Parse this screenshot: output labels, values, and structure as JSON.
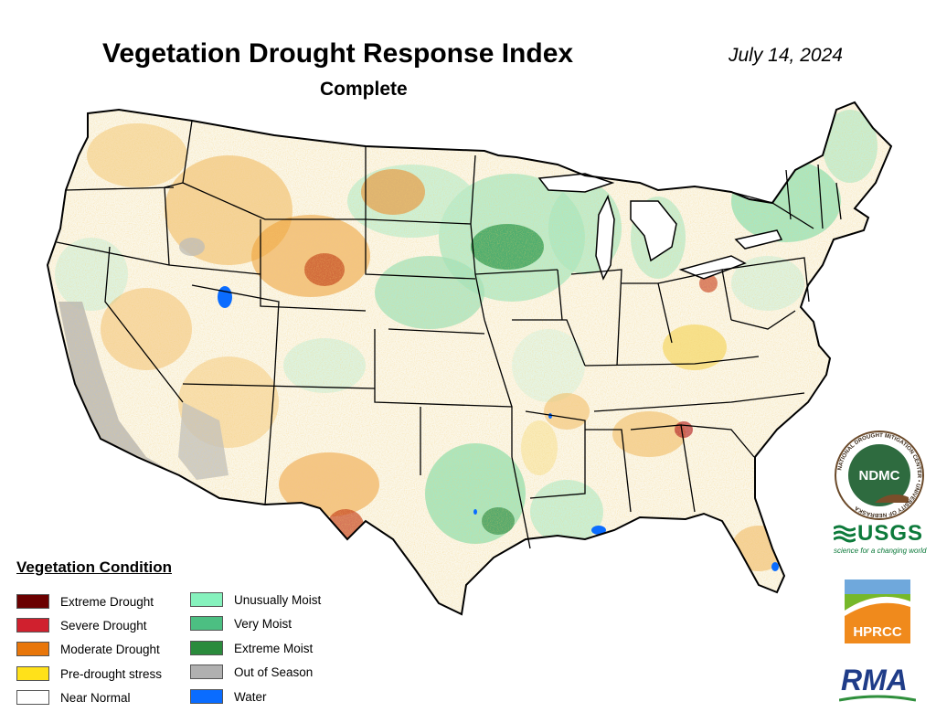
{
  "header": {
    "title": "Vegetation Drought Response Index",
    "subtitle": "Complete",
    "date": "July 14, 2024"
  },
  "legend": {
    "title": "Vegetation Condition",
    "items": [
      {
        "label": "Extreme Drought",
        "color": "#6b0000"
      },
      {
        "label": "Severe Drought",
        "color": "#d0202e"
      },
      {
        "label": "Moderate Drought",
        "color": "#e8760a"
      },
      {
        "label": "Pre-drought stress",
        "color": "#ffe11a"
      },
      {
        "label": "Near Normal",
        "color": "#ffffff"
      },
      {
        "label": "Unusually Moist",
        "color": "#86f2bd"
      },
      {
        "label": "Very Moist",
        "color": "#4cbf82"
      },
      {
        "label": "Extreme Moist",
        "color": "#2a8b3c"
      },
      {
        "label": "Out of Season",
        "color": "#b0b0b0"
      },
      {
        "label": "Water",
        "color": "#0a6cff"
      }
    ]
  },
  "logos": {
    "ndmc": {
      "center": "NDMC",
      "ring": "NATIONAL DROUGHT MITIGATION CENTER • UNIVERSITY OF NEBRASKA"
    },
    "usgs": {
      "name": "USGS",
      "tagline": "science for a changing world"
    },
    "hprcc": {
      "name": "HPRCC"
    },
    "rma": {
      "name": "RMA"
    }
  }
}
